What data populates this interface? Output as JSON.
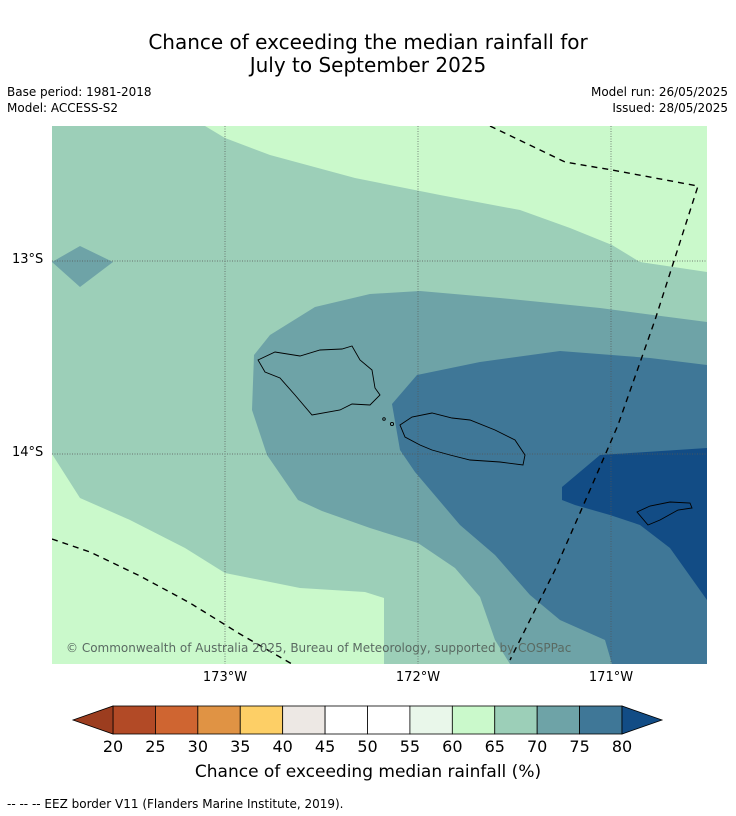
{
  "title_line1": "Chance of exceeding the median rainfall for",
  "title_line2": "July to September 2025",
  "base_period": "Base period: 1981-2018",
  "model": "Model: ACCESS-S2",
  "model_run": "Model run: 26/05/2025",
  "issued": "Issued: 28/05/2025",
  "lat_labels": [
    "13°S",
    "14°S"
  ],
  "lon_labels": [
    "173°W",
    "172°W",
    "171°W"
  ],
  "copyright": "© Commonwealth of Australia 2025, Bureau of Meteorology, supported by COSPPac",
  "colorbar": {
    "ticks": [
      "20",
      "25",
      "30",
      "35",
      "40",
      "45",
      "50",
      "55",
      "60",
      "65",
      "70",
      "75",
      "80"
    ],
    "under_color": "#9c3d1f",
    "over_color": "#124c85",
    "colors": [
      "#b24a26",
      "#cf6531",
      "#e09344",
      "#fdcf66",
      "#ede8e4",
      "#ffffff",
      "#ffffff",
      "#e9f7ea",
      "#caf9cb",
      "#9ccfb8",
      "#6ea3a7",
      "#3f7797"
    ],
    "label": "Chance of exceeding median rainfall (%)"
  },
  "footnote": "--  --  -- EEZ border V11 (Flanders Marine Institute, 2019)."
}
